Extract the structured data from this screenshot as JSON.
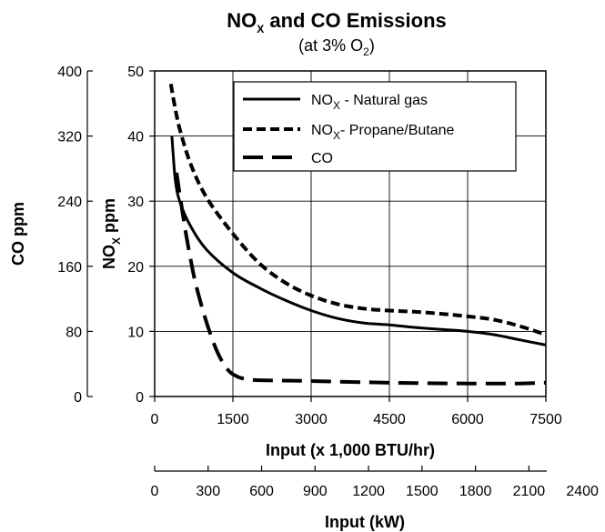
{
  "chart_data": {
    "type": "line",
    "title": {
      "pre": "NO",
      "sub": "X",
      "post": " and CO Emissions"
    },
    "subtitle": {
      "pre": "(at 3% O",
      "sub": "2",
      "post": ")"
    },
    "x_axis": {
      "label": "Input (x 1,000 BTU/hr)",
      "range": [
        0,
        7500
      ],
      "ticks": [
        "0",
        "1500",
        "3000",
        "4500",
        "6000",
        "7500"
      ]
    },
    "x2_axis": {
      "label": "Input (kW)",
      "range": [
        0,
        2400
      ],
      "ticks": [
        "0",
        "300",
        "600",
        "900",
        "1200",
        "1500",
        "1800",
        "2100",
        "2400"
      ]
    },
    "y_axis": {
      "label": {
        "pre": "NO",
        "sub": "X",
        "post": " ppm"
      },
      "range": [
        0,
        50
      ],
      "ticks": [
        "0",
        "10",
        "20",
        "30",
        "40",
        "50"
      ]
    },
    "y2_axis": {
      "label": "CO ppm",
      "range": [
        0,
        400
      ],
      "ticks": [
        "0",
        "80",
        "160",
        "240",
        "320",
        "400"
      ]
    },
    "grid": true,
    "legend": "top-right",
    "series": [
      {
        "name": {
          "pre": "NO",
          "sub": "X",
          "post": " - Natural gas"
        },
        "style": "solid",
        "axis": "left",
        "points": [
          [
            330,
            40
          ],
          [
            400,
            33
          ],
          [
            500,
            29.5
          ],
          [
            700,
            26
          ],
          [
            1000,
            22.5
          ],
          [
            1500,
            19
          ],
          [
            2000,
            16.7
          ],
          [
            2500,
            14.8
          ],
          [
            3000,
            13.2
          ],
          [
            3500,
            12
          ],
          [
            4000,
            11.3
          ],
          [
            4500,
            11
          ],
          [
            5000,
            10.6
          ],
          [
            5500,
            10.3
          ],
          [
            6000,
            10
          ],
          [
            6500,
            9.5
          ],
          [
            7000,
            8.7
          ],
          [
            7500,
            7.9
          ]
        ]
      },
      {
        "name": {
          "pre": "NO",
          "sub": "X",
          "post": "- Propane/Butane"
        },
        "style": "short-dash",
        "axis": "left",
        "points": [
          [
            310,
            48
          ],
          [
            400,
            44
          ],
          [
            500,
            40.5
          ],
          [
            700,
            35.5
          ],
          [
            1000,
            30.5
          ],
          [
            1500,
            25
          ],
          [
            2000,
            20.5
          ],
          [
            2500,
            17.5
          ],
          [
            3000,
            15.5
          ],
          [
            3500,
            14.2
          ],
          [
            4000,
            13.5
          ],
          [
            4500,
            13.2
          ],
          [
            5000,
            13
          ],
          [
            5500,
            12.7
          ],
          [
            6000,
            12.3
          ],
          [
            6500,
            11.8
          ],
          [
            7000,
            10.8
          ],
          [
            7500,
            9.5
          ]
        ]
      },
      {
        "name": "CO",
        "style": "long-dash",
        "axis": "right",
        "points": [
          [
            420,
            275
          ],
          [
            500,
            240
          ],
          [
            600,
            200
          ],
          [
            700,
            165
          ],
          [
            800,
            135
          ],
          [
            1000,
            90
          ],
          [
            1200,
            55
          ],
          [
            1400,
            33
          ],
          [
            1600,
            24
          ],
          [
            1800,
            21
          ],
          [
            2000,
            20
          ],
          [
            2500,
            19.5
          ],
          [
            3000,
            19
          ],
          [
            4000,
            17.5
          ],
          [
            5000,
            16.5
          ],
          [
            6000,
            16
          ],
          [
            7000,
            16
          ],
          [
            7500,
            17
          ]
        ]
      }
    ]
  }
}
